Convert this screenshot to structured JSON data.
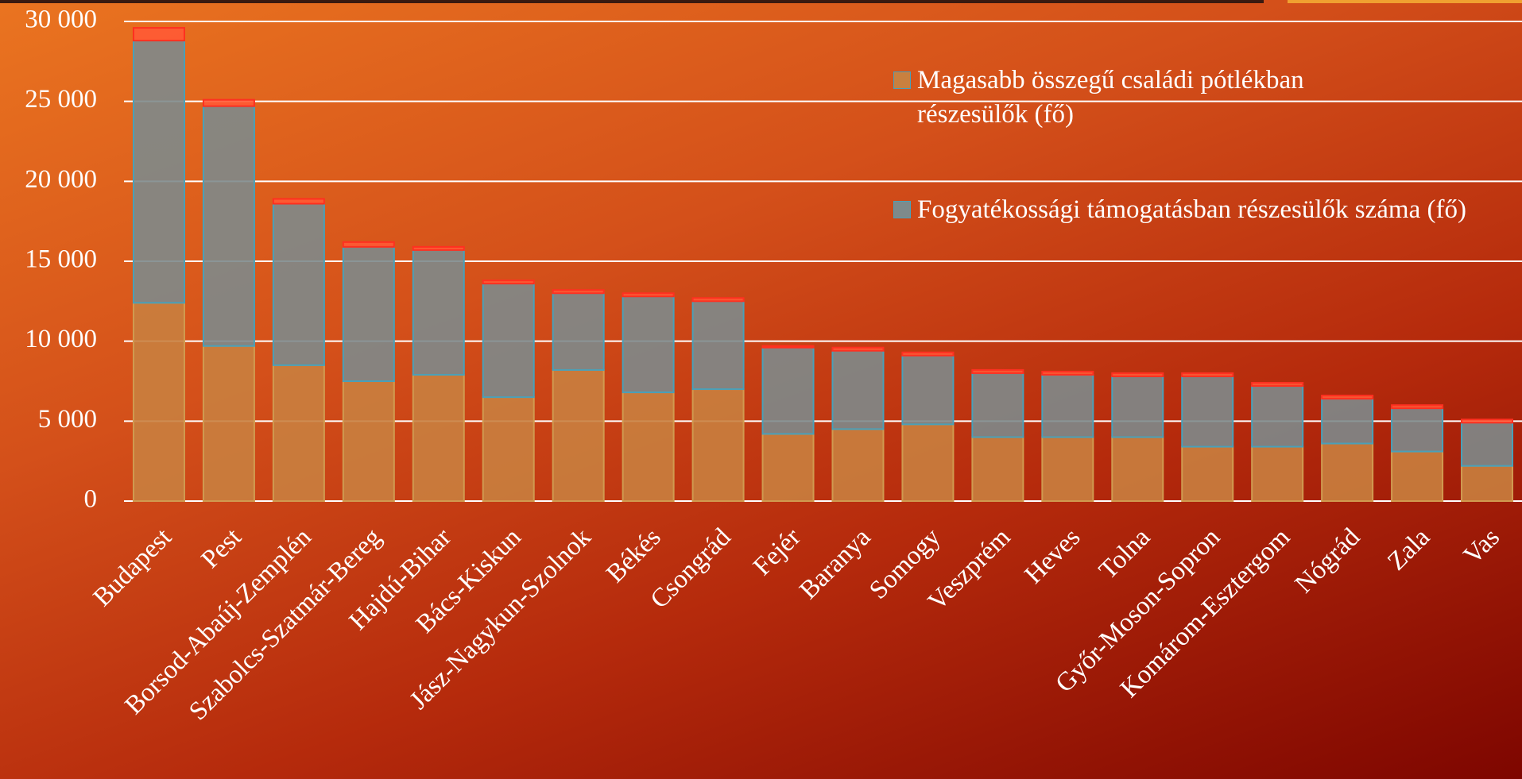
{
  "chart_data": {
    "type": "stacked_bar",
    "categories": [
      "Budapest",
      "Pest",
      "Borsod-Abaúj-Zemplén",
      "Szabolcs-Szatmár-Bereg",
      "Hajdú-Bihar",
      "Bács-Kiskun",
      "Jász-Nagykun-Szolnok",
      "Békés",
      "Csongrád",
      "Fejér",
      "Baranya",
      "Somogy",
      "Veszprém",
      "Heves",
      "Tolna",
      "Győr-Moson-Sopron",
      "Komárom-Esztergom",
      "Nógrád",
      "Zala",
      "Vas"
    ],
    "series": [
      {
        "name": "Magasabb összegű családi pótlékban részesülők (fő)",
        "color": "#c9803f",
        "values": [
          12400,
          9700,
          8500,
          7500,
          7900,
          6500,
          8200,
          6800,
          7000,
          4200,
          4500,
          4800,
          4000,
          4000,
          4000,
          3400,
          3400,
          3600,
          3100,
          2200
        ]
      },
      {
        "name": "Fogyatékossági támogatásban részesülők száma (fő)",
        "color": "#7e8a8b",
        "values": [
          16400,
          15000,
          10100,
          8400,
          7800,
          7100,
          4800,
          6000,
          5500,
          5400,
          4900,
          4300,
          4000,
          3900,
          3800,
          4400,
          3800,
          2800,
          2700,
          2700
        ]
      },
      {
        "color": "#ff5a35",
        "values": [
          800,
          400,
          300,
          300,
          200,
          200,
          200,
          200,
          200,
          100,
          200,
          200,
          200,
          200,
          200,
          200,
          200,
          200,
          200,
          200
        ]
      }
    ],
    "ylim": [
      0,
      30000
    ],
    "yticks": [
      0,
      {
        "value": 5000,
        "label": "5 000"
      },
      {
        "value": 10000,
        "label": "10 000"
      },
      {
        "value": 15000,
        "label": "15 000"
      },
      {
        "value": 20000,
        "label": "20 000"
      },
      {
        "value": 25000,
        "label": "25 000"
      },
      {
        "value": 30000,
        "label": "30 000"
      }
    ],
    "grid": true,
    "legend": "top-right"
  }
}
